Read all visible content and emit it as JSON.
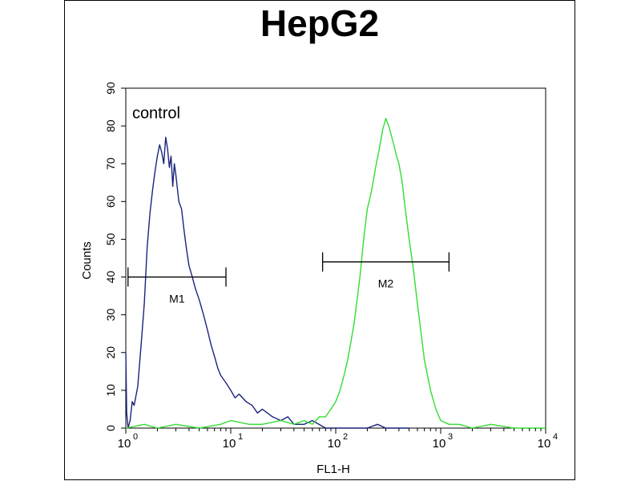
{
  "chart_data": {
    "type": "line",
    "title": "HepG2",
    "xlabel": "FL1-H",
    "ylabel": "Counts",
    "xscale": "log",
    "xlim": [
      1,
      10000
    ],
    "ylim": [
      0,
      90
    ],
    "yticks": [
      0,
      10,
      20,
      30,
      40,
      50,
      60,
      70,
      80,
      90
    ],
    "xticks": [
      {
        "value": 1,
        "base": "10",
        "exp": "0"
      },
      {
        "value": 10,
        "base": "10",
        "exp": "1"
      },
      {
        "value": 100,
        "base": "10",
        "exp": "2"
      },
      {
        "value": 1000,
        "base": "10",
        "exp": "3"
      },
      {
        "value": 10000,
        "base": "10",
        "exp": "4"
      }
    ],
    "annotations": [
      {
        "text": "control",
        "x": 1.15,
        "y": 82
      }
    ],
    "markers": [
      {
        "label": "M1",
        "x_start": 1.05,
        "x_end": 9.0,
        "y": 40
      },
      {
        "label": "M2",
        "x_start": 75,
        "x_end": 1200,
        "y": 44
      }
    ],
    "colors": {
      "control": "#1a237e",
      "sample": "#33dd33"
    },
    "series": [
      {
        "key": "control",
        "color": "#1a237e",
        "x": [
          1.0,
          1.02,
          1.05,
          1.1,
          1.15,
          1.2,
          1.3,
          1.4,
          1.5,
          1.6,
          1.7,
          1.8,
          1.9,
          2.0,
          2.1,
          2.2,
          2.3,
          2.4,
          2.5,
          2.6,
          2.7,
          2.8,
          2.9,
          3.0,
          3.2,
          3.4,
          3.6,
          3.8,
          4.0,
          4.3,
          4.6,
          5.0,
          5.5,
          6.0,
          6.5,
          7.0,
          7.5,
          8.0,
          9.0,
          10,
          11,
          12,
          14,
          16,
          18,
          20,
          25,
          30,
          35,
          40,
          50,
          60,
          80,
          100,
          150,
          200,
          250,
          300,
          400,
          500
        ],
        "y": [
          20,
          4,
          0,
          2,
          7,
          6,
          11,
          22,
          33,
          48,
          57,
          63,
          68,
          72,
          75,
          73,
          70,
          77,
          74,
          69,
          72,
          64,
          70,
          67,
          60,
          58,
          52,
          47,
          43,
          40,
          37,
          34,
          30,
          26,
          22,
          19,
          16,
          14,
          12,
          10,
          8,
          9,
          7,
          6,
          4,
          5,
          3,
          2,
          3,
          1,
          1,
          2,
          0,
          0,
          0,
          0,
          1,
          0,
          0,
          0
        ]
      },
      {
        "key": "sample",
        "color": "#33dd33",
        "x": [
          1.0,
          1.5,
          2,
          3,
          5,
          8,
          10,
          15,
          20,
          30,
          40,
          50,
          60,
          70,
          80,
          90,
          100,
          110,
          120,
          130,
          140,
          150,
          160,
          170,
          180,
          190,
          200,
          220,
          240,
          260,
          280,
          300,
          320,
          350,
          380,
          400,
          430,
          460,
          500,
          550,
          600,
          700,
          800,
          900,
          1000,
          1200,
          1500,
          2000,
          3000,
          5000,
          10000
        ],
        "y": [
          0,
          1,
          0,
          1,
          0,
          1,
          2,
          1,
          1,
          2,
          1,
          2,
          1,
          3,
          3,
          5,
          7,
          10,
          14,
          18,
          23,
          28,
          34,
          40,
          47,
          53,
          58,
          63,
          69,
          74,
          79,
          82,
          80,
          76,
          72,
          70,
          65,
          58,
          50,
          42,
          33,
          18,
          10,
          5,
          2,
          1,
          1,
          0,
          1,
          0,
          0
        ]
      }
    ]
  }
}
